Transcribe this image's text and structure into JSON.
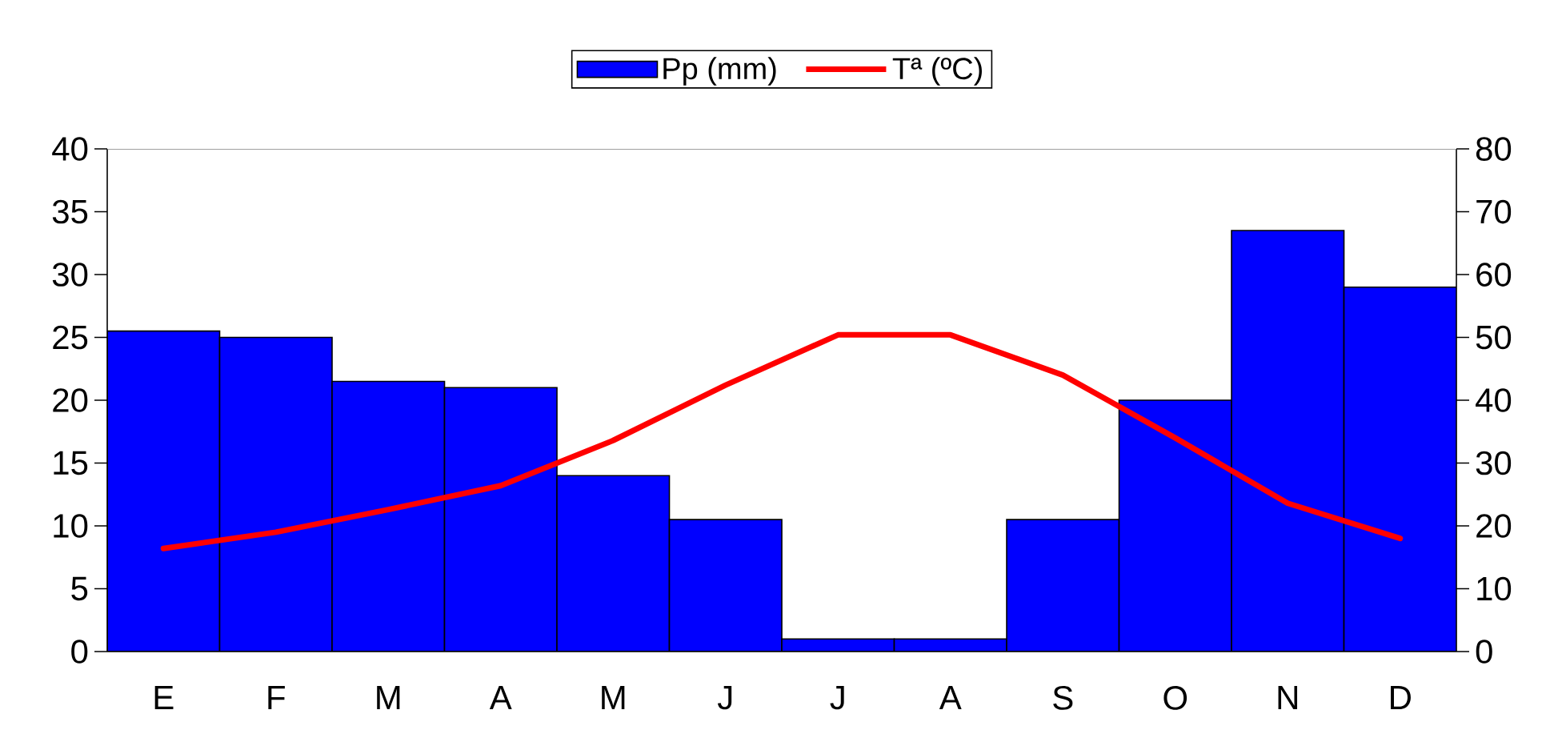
{
  "chart_data": {
    "type": "bar",
    "categories": [
      "E",
      "F",
      "M",
      "A",
      "M",
      "J",
      "J",
      "A",
      "S",
      "O",
      "N",
      "D"
    ],
    "series": [
      {
        "name": "Pp (mm)",
        "axis": "y2",
        "color": "#0000ff",
        "values": [
          51,
          50,
          43,
          42,
          28,
          21,
          2,
          2,
          21,
          40,
          67,
          58
        ]
      },
      {
        "name": "Tª (ºC)",
        "type": "line",
        "color": "#ff0000",
        "values": [
          8.2,
          9.5,
          11.3,
          13.2,
          16.8,
          21.2,
          25.2,
          25.2,
          22,
          17,
          11.8,
          9
        ]
      }
    ],
    "ylim": [
      0,
      40
    ],
    "yticks": [
      0,
      5,
      10,
      15,
      20,
      25,
      30,
      35,
      40
    ],
    "y2lim": [
      0,
      80
    ],
    "y2ticks": [
      0,
      10,
      20,
      30,
      40,
      50,
      60,
      70,
      80
    ],
    "legend": "top",
    "grid": false,
    "marker": "none"
  }
}
